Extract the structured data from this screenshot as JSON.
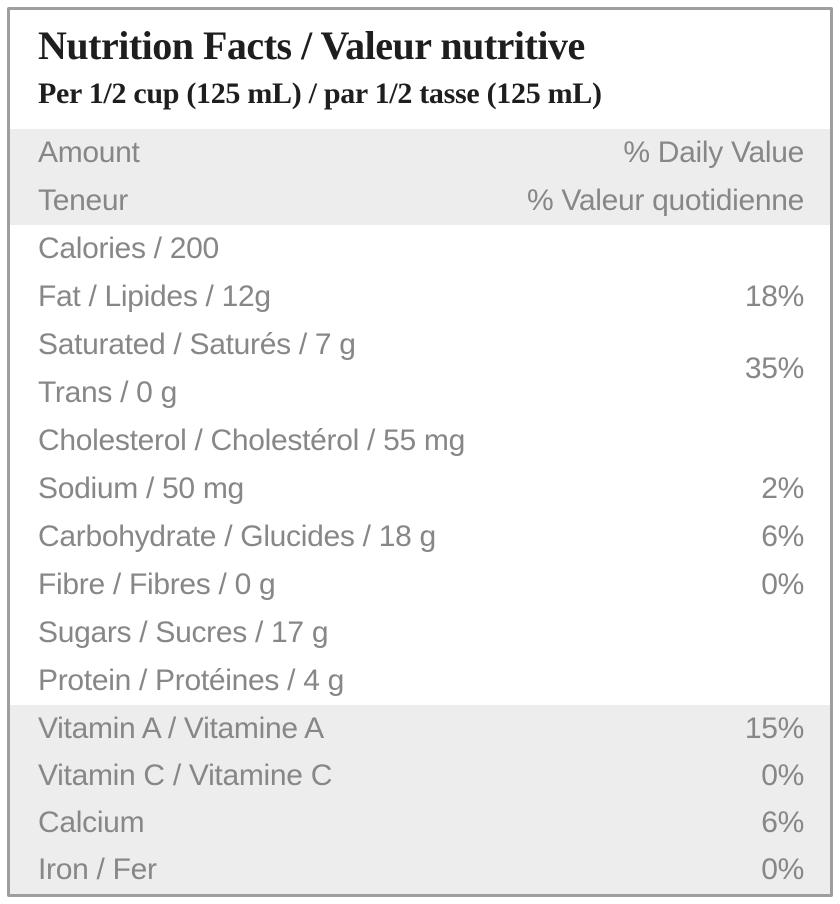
{
  "header": {
    "title": "Nutrition Facts / Valeur nutritive",
    "serving": "Per 1/2 cup (125 mL) / par 1/2 tasse (125 mL)"
  },
  "column_header": {
    "amount_en": "Amount",
    "amount_fr": "Teneur",
    "daily_value_en": "% Daily Value",
    "daily_value_fr": "% Valeur quotidienne"
  },
  "nutrients": {
    "calories": {
      "label": "Calories / 200",
      "dv": ""
    },
    "fat": {
      "label": "Fat / Lipides / 12g",
      "dv": "18%"
    },
    "sat_trans": {
      "line1": "Saturated / Saturés / 7 g",
      "line2": "Trans / 0 g",
      "dv": "35%"
    },
    "cholesterol": {
      "label": "Cholesterol / Cholestérol / 55 mg",
      "dv": ""
    },
    "sodium": {
      "label": "Sodium / 50 mg",
      "dv": "2%"
    },
    "carbohydrate": {
      "label": "Carbohydrate / Glucides / 18 g",
      "dv": "6%"
    },
    "fibre": {
      "label": "Fibre / Fibres / 0 g",
      "dv": "0%"
    },
    "sugars": {
      "label": "Sugars / Sucres / 17 g",
      "dv": ""
    },
    "protein": {
      "label": "Protein / Protéines / 4 g",
      "dv": ""
    }
  },
  "micronutrients": [
    {
      "label": "Vitamin A / Vitamine A",
      "dv": "15%"
    },
    {
      "label": "Vitamin C / Vitamine C",
      "dv": "0%"
    },
    {
      "label": "Calcium",
      "dv": "6%"
    },
    {
      "label": "Iron / Fer",
      "dv": "0%"
    }
  ],
  "colors": {
    "band_background": "#ededed",
    "body_text": "#878787",
    "title_text": "#1e1e1e",
    "border": "#9e9e9e"
  }
}
